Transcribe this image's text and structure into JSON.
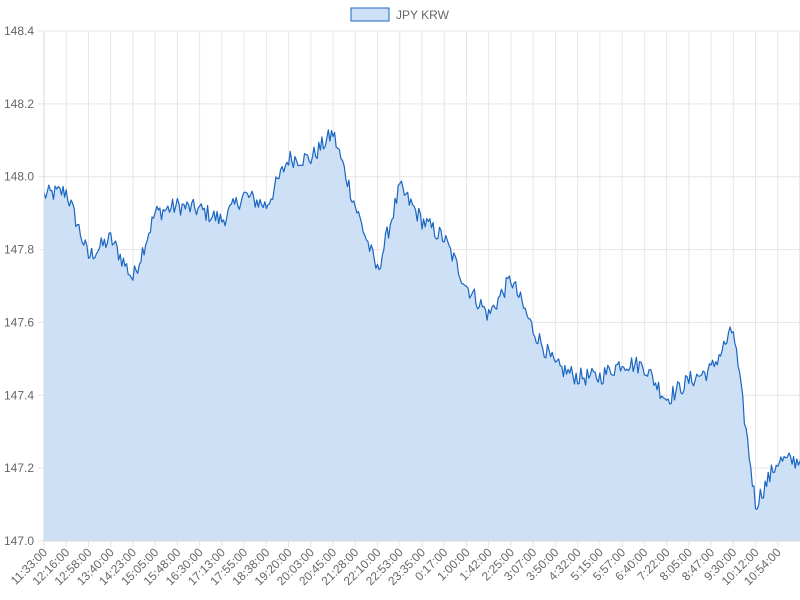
{
  "chart_data": {
    "type": "area",
    "title": "",
    "xlabel": "",
    "ylabel": "",
    "legend": {
      "position": "top-center",
      "entries": [
        "JPY KRW"
      ]
    },
    "grid": true,
    "ylim": [
      147.0,
      148.4
    ],
    "yticks": [
      "148.4",
      "148.2",
      "148.0",
      "147.8",
      "147.6",
      "147.4",
      "147.2",
      "147.0"
    ],
    "xticks": [
      "11:33:00",
      "12:16:00",
      "12:58:00",
      "13:40:00",
      "14:23:00",
      "15:05:00",
      "15:48:00",
      "16:30:00",
      "17:13:00",
      "17:55:00",
      "18:38:00",
      "19:20:00",
      "20:03:00",
      "20:45:00",
      "21:28:00",
      "22:10:00",
      "22:53:00",
      "23:35:00",
      "0:17:00",
      "1:00:00",
      "1:42:00",
      "2:25:00",
      "3:07:00",
      "3:50:00",
      "4:32:00",
      "5:15:00",
      "5:57:00",
      "6:40:00",
      "7:22:00",
      "8:05:00",
      "8:47:00",
      "9:30:00",
      "10:12:00",
      "10:54:00"
    ],
    "series": [
      {
        "name": "JPY KRW",
        "color": "#1a66c2",
        "fill": "#cde0f5",
        "x": [
          "11:33:00",
          "12:16:00",
          "12:58:00",
          "13:40:00",
          "14:23:00",
          "15:05:00",
          "15:48:00",
          "16:30:00",
          "17:13:00",
          "17:55:00",
          "18:38:00",
          "19:20:00",
          "20:03:00",
          "20:45:00",
          "21:28:00",
          "22:10:00",
          "22:53:00",
          "23:35:00",
          "0:17:00",
          "1:00:00",
          "1:42:00",
          "2:25:00",
          "3:07:00",
          "3:50:00",
          "4:32:00",
          "5:15:00",
          "5:57:00",
          "6:40:00",
          "7:22:00",
          "8:05:00",
          "8:47:00",
          "9:30:00",
          "10:12:00",
          "10:54:00"
        ],
        "values": [
          147.95,
          147.96,
          147.78,
          147.83,
          147.72,
          147.9,
          147.92,
          147.91,
          147.88,
          147.95,
          147.92,
          148.05,
          148.05,
          148.12,
          147.92,
          147.74,
          147.97,
          147.88,
          147.83,
          147.7,
          147.62,
          147.72,
          147.58,
          147.48,
          147.45,
          147.45,
          147.49,
          147.48,
          147.39,
          147.44,
          147.47,
          147.58,
          147.1,
          147.22
        ]
      }
    ]
  }
}
